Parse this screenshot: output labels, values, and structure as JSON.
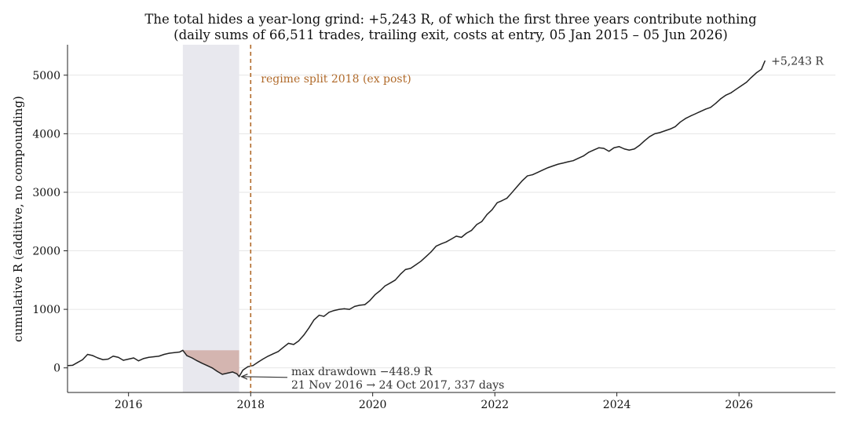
{
  "chart_data": {
    "type": "line",
    "title": "The total hides a year-long grind: +5,243 R, of which the first three years contribute nothing",
    "subtitle": "(daily sums of 66,511 trades, trailing exit, costs at entry, 05 Jan 2015 – 05 Jun 2026)",
    "xlabel": "",
    "ylabel": "cumulative R (additive, no compounding)",
    "xlim": [
      "2015-01-01",
      "2027-08-01"
    ],
    "ylim": [
      -420,
      5520
    ],
    "x_ticks": [
      "2016",
      "2018",
      "2020",
      "2022",
      "2024",
      "2026"
    ],
    "y_ticks": [
      0,
      1000,
      2000,
      3000,
      4000,
      5000
    ],
    "grid": "horizontal",
    "line_color": "#222222",
    "series": [
      {
        "name": "",
        "x": [
          "2015-01-05",
          "2015-02-01",
          "2015-03-01",
          "2015-04-01",
          "2015-05-01",
          "2015-06-01",
          "2015-07-01",
          "2015-08-01",
          "2015-09-01",
          "2015-10-01",
          "2015-11-01",
          "2015-12-01",
          "2016-01-01",
          "2016-02-01",
          "2016-03-01",
          "2016-04-01",
          "2016-05-01",
          "2016-06-01",
          "2016-07-01",
          "2016-08-01",
          "2016-09-01",
          "2016-10-01",
          "2016-11-01",
          "2016-11-21",
          "2016-12-15",
          "2017-01-15",
          "2017-02-15",
          "2017-03-15",
          "2017-04-15",
          "2017-05-15",
          "2017-06-15",
          "2017-07-15",
          "2017-08-15",
          "2017-09-15",
          "2017-10-10",
          "2017-10-24",
          "2017-11-15",
          "2017-12-15",
          "2018-01-15",
          "2018-02-15",
          "2018-03-15",
          "2018-04-15",
          "2018-05-15",
          "2018-06-15",
          "2018-07-15",
          "2018-08-15",
          "2018-09-15",
          "2018-10-15",
          "2018-11-15",
          "2018-12-15",
          "2019-01-15",
          "2019-02-15",
          "2019-03-15",
          "2019-04-15",
          "2019-05-15",
          "2019-06-15",
          "2019-07-15",
          "2019-08-15",
          "2019-09-15",
          "2019-10-15",
          "2019-11-15",
          "2019-12-15",
          "2020-01-15",
          "2020-02-15",
          "2020-03-15",
          "2020-04-15",
          "2020-05-15",
          "2020-06-15",
          "2020-07-15",
          "2020-08-15",
          "2020-09-15",
          "2020-10-15",
          "2020-11-15",
          "2020-12-15",
          "2021-01-15",
          "2021-02-15",
          "2021-03-15",
          "2021-04-15",
          "2021-05-15",
          "2021-06-15",
          "2021-07-15",
          "2021-08-15",
          "2021-09-15",
          "2021-10-15",
          "2021-11-15",
          "2021-12-15",
          "2022-01-15",
          "2022-02-15",
          "2022-03-15",
          "2022-04-15",
          "2022-05-15",
          "2022-06-15",
          "2022-07-15",
          "2022-08-15",
          "2022-09-15",
          "2022-10-15",
          "2022-11-15",
          "2022-12-15",
          "2023-01-15",
          "2023-02-15",
          "2023-03-15",
          "2023-04-15",
          "2023-05-15",
          "2023-06-15",
          "2023-07-15",
          "2023-08-15",
          "2023-09-15",
          "2023-10-15",
          "2023-11-15",
          "2023-12-15",
          "2024-01-15",
          "2024-02-15",
          "2024-03-15",
          "2024-04-15",
          "2024-05-15",
          "2024-06-15",
          "2024-07-15",
          "2024-08-15",
          "2024-09-15",
          "2024-10-15",
          "2024-11-15",
          "2024-12-15",
          "2025-01-15",
          "2025-02-15",
          "2025-03-15",
          "2025-04-15",
          "2025-05-15",
          "2025-06-15",
          "2025-07-15",
          "2025-08-15",
          "2025-09-15",
          "2025-10-15",
          "2025-11-15",
          "2025-12-15",
          "2026-01-15",
          "2026-02-15",
          "2026-03-15",
          "2026-04-15",
          "2026-05-15",
          "2026-06-05"
        ],
        "y": [
          40,
          45,
          90,
          140,
          230,
          210,
          170,
          140,
          150,
          200,
          180,
          130,
          150,
          170,
          120,
          160,
          180,
          190,
          200,
          230,
          250,
          260,
          270,
          300,
          210,
          170,
          120,
          80,
          40,
          0,
          -60,
          -110,
          -90,
          -70,
          -100,
          -149,
          -40,
          20,
          40,
          100,
          150,
          200,
          240,
          280,
          350,
          420,
          400,
          460,
          560,
          680,
          820,
          900,
          880,
          950,
          980,
          1000,
          1010,
          1000,
          1050,
          1070,
          1080,
          1150,
          1250,
          1320,
          1400,
          1450,
          1500,
          1600,
          1680,
          1700,
          1760,
          1820,
          1900,
          1980,
          2080,
          2120,
          2150,
          2200,
          2250,
          2230,
          2300,
          2350,
          2450,
          2500,
          2620,
          2700,
          2820,
          2860,
          2900,
          3000,
          3100,
          3200,
          3280,
          3300,
          3340,
          3380,
          3420,
          3450,
          3480,
          3500,
          3520,
          3540,
          3580,
          3620,
          3680,
          3720,
          3760,
          3750,
          3700,
          3760,
          3780,
          3740,
          3720,
          3740,
          3800,
          3880,
          3950,
          4000,
          4020,
          4050,
          4080,
          4120,
          4200,
          4260,
          4300,
          4340,
          4380,
          4420,
          4450,
          4520,
          4600,
          4660,
          4700,
          4760,
          4820,
          4880,
          4960,
          5040,
          5100,
          5243
        ]
      }
    ],
    "shaded_region": {
      "start": "2016-11-21",
      "end": "2017-10-24",
      "color": "#e8e8ee"
    },
    "drawdown_fill": {
      "start": "2016-11-21",
      "end": "2017-10-24",
      "peak": 300,
      "color": "#d4b5b0"
    },
    "vline": {
      "x": "2018-01-01",
      "label": "regime split 2018 (ex post)",
      "color": "#b06a2a"
    },
    "end_label": "+5,243 R",
    "annotation": {
      "line1": "max drawdown −448.9 R",
      "line2": "21 Nov 2016 → 24 Oct 2017, 337 days",
      "target_x": "2017-10-24",
      "target_y": -149
    }
  }
}
